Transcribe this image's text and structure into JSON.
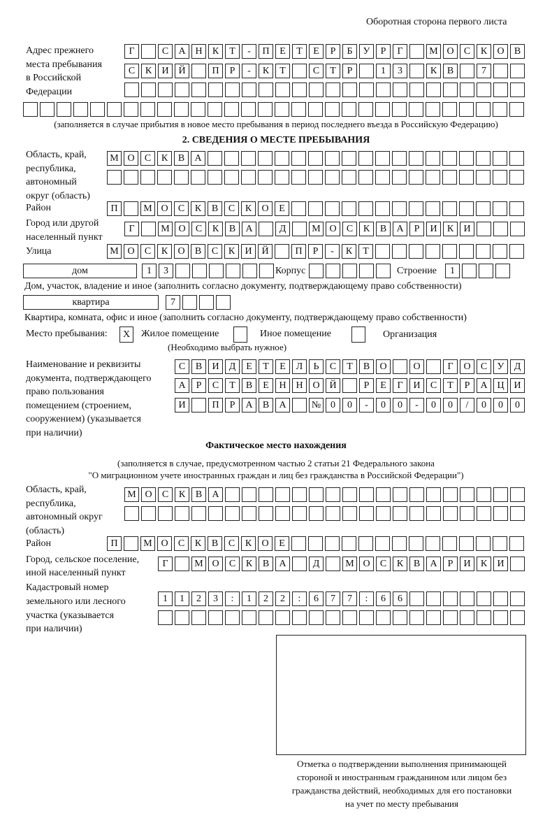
{
  "header": "Оборотная сторона первого листа",
  "prev_address": {
    "label": [
      "Адрес прежнего",
      "места пребывания",
      "в Российской",
      "Федерации"
    ],
    "rows": [
      "Г САНКТ-ПЕТЕРБУРГ МОСКОВ",
      "СКИЙ ПР-КТ СТР 13 КВ 7  ",
      "                        ",
      "                              "
    ],
    "note": "(заполняется в случае прибытия в новое место пребывания в период последнего въезда в Российскую Федерацию)"
  },
  "section2": {
    "title": "2. СВЕДЕНИЯ О МЕСТЕ ПРЕБЫВАНИЯ",
    "region_label": [
      "Область, край,",
      "республика,",
      "автономный",
      "округ (область)"
    ],
    "region_rows": [
      "МОСКВА                   ",
      "                         "
    ],
    "district_label": "Район",
    "district_row": "П МОСКВСКОЕ              ",
    "city_label": [
      "Город или другой",
      "населенный пункт"
    ],
    "city_row": "Г МОСКВА Д МОСКВАРИКИ   ",
    "street_label": "Улица",
    "street_row": "МОСКОВСКИЙ ПР-КТ         ",
    "house_type": "дом",
    "house_cells": "13      ",
    "korpus_label": "Корпус",
    "korpus_cells": "     ",
    "building_label": "Строение",
    "building_cells": "1   ",
    "house_caption": "Дом, участок, владение и иное (заполнить согласно документу, подтверждающему право собственности)",
    "apt_type": "квартира",
    "apt_cells": "7   ",
    "apt_caption": "Квартира, комната, офис и иное (заполнить согласно документу, подтверждающему право собственности)",
    "place_label": "Место пребывания:",
    "place_options": [
      {
        "label": "Жилое помещение",
        "mark": "X"
      },
      {
        "label": "Иное помещение",
        "mark": ""
      },
      {
        "label": "Организация",
        "mark": ""
      }
    ],
    "place_hint": "(Необходимо выбрать нужное)",
    "doc_label": [
      "Наименование и реквизиты",
      "документа, подтверждающего",
      "право пользования",
      "помещением (строением,",
      "сооружением) (указывается",
      "при наличии)"
    ],
    "doc_rows": [
      "СВИДЕТЕЛЬСТВО О ГОСУД",
      "АРСТВЕННОЙ РЕГИСТРАЦИ",
      "И ПРАВА №00-00-00/000"
    ]
  },
  "actual": {
    "title": "Фактическое место нахождения",
    "note1": "(заполняется в случае, предусмотренном частью 2 статьи 21 Федерального закона",
    "note2": "\"О миграционном учете иностранных граждан и лиц без гражданства в Российской Федерации\")",
    "region_label": [
      "Область, край,",
      "республика,",
      "автономный округ",
      "(область)"
    ],
    "region_rows": [
      "МОСКВА                  ",
      "                        "
    ],
    "district_label": "Район",
    "district_row": "П МОСКВСКОЕ              ",
    "city_label": [
      "Город, сельское поселение,",
      "иной населенный пункт"
    ],
    "city_row": "Г МОСКВА Д МОСКВАРИКИ ",
    "cadastre_label": [
      "Кадастровый номер",
      "земельного или лесного",
      "участка (указывается",
      "при наличии)"
    ],
    "cadastre_rows": [
      "1123:122:677:66       ",
      "                      "
    ]
  },
  "stamp_caption": [
    "Отметка о подтверждении выполнения принимающей",
    "стороной и иностранным гражданином или лицом без",
    "гражданства действий, необходимых для его постановки",
    "на учет по месту пребывания"
  ]
}
